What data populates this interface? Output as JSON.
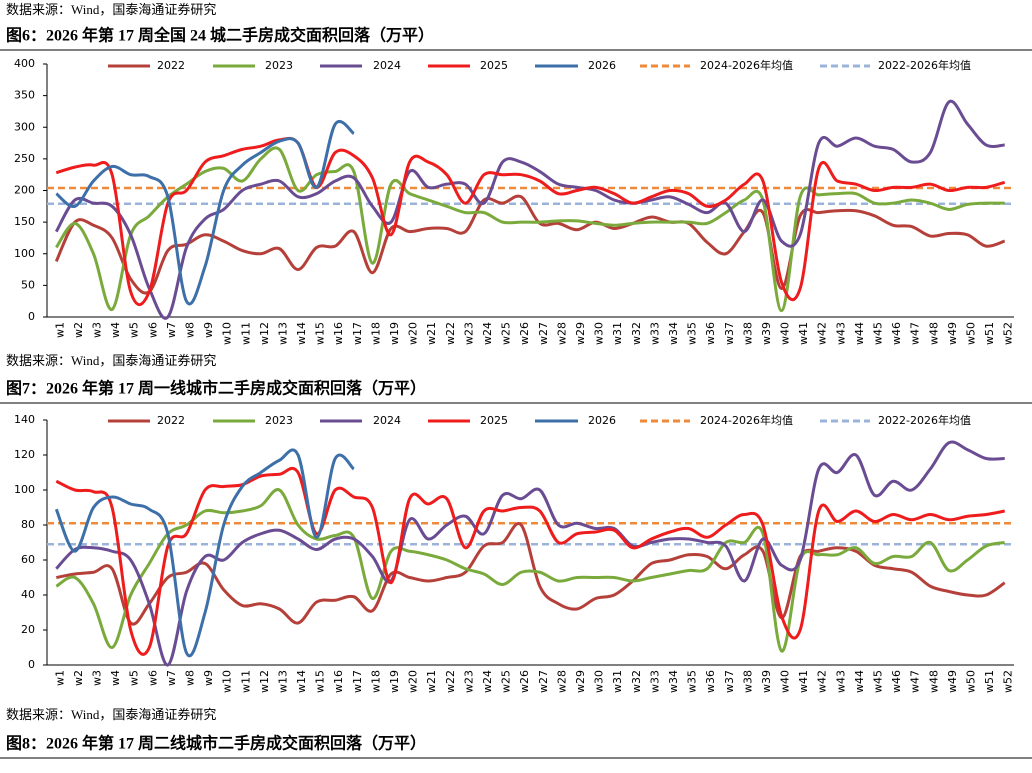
{
  "chart_data": [
    {
      "type": "line",
      "source": "数据来源：Wind，国泰海通证券研究",
      "title": "图6：2026 年第 17 周全国 24 城二手房成交面积回落（万平）",
      "categories": [
        "w1",
        "w2",
        "w3",
        "w4",
        "w5",
        "w6",
        "w7",
        "w8",
        "w9",
        "w10",
        "w11",
        "w12",
        "w13",
        "w14",
        "w15",
        "w16",
        "w17",
        "w18",
        "w19",
        "w20",
        "w21",
        "w22",
        "w23",
        "w24",
        "w25",
        "w26",
        "w27",
        "w28",
        "w29",
        "w30",
        "w31",
        "w32",
        "w33",
        "w34",
        "w35",
        "w36",
        "w37",
        "w38",
        "w39",
        "w40",
        "w41",
        "w42",
        "w43",
        "w44",
        "w45",
        "w46",
        "w47",
        "w48",
        "w49",
        "w50",
        "w51",
        "w52"
      ],
      "ylim": [
        0,
        400
      ],
      "yticks": [
        0,
        50,
        100,
        150,
        200,
        250,
        300,
        350,
        400
      ],
      "series": [
        {
          "name": "2022",
          "color": "#b5403a",
          "values": [
            88,
            150,
            145,
            125,
            60,
            40,
            105,
            115,
            130,
            120,
            105,
            100,
            108,
            75,
            110,
            112,
            135,
            70,
            140,
            135,
            140,
            140,
            135,
            185,
            180,
            190,
            148,
            148,
            138,
            150,
            140,
            148,
            158,
            150,
            148,
            118,
            100,
            135,
            165,
            45,
            160,
            165,
            168,
            168,
            160,
            145,
            143,
            128,
            132,
            130,
            112,
            120
          ]
        },
        {
          "name": "2023",
          "color": "#7aaa3c",
          "values": [
            110,
            148,
            100,
            12,
            130,
            160,
            190,
            210,
            230,
            235,
            215,
            250,
            265,
            200,
            225,
            230,
            230,
            85,
            210,
            195,
            185,
            175,
            165,
            165,
            150,
            150,
            150,
            152,
            152,
            148,
            145,
            148,
            150,
            150,
            150,
            148,
            165,
            185,
            185,
            10,
            190,
            193,
            195,
            195,
            180,
            180,
            185,
            180,
            170,
            178,
            180,
            180
          ]
        },
        {
          "name": "2024",
          "color": "#6a4c93",
          "values": [
            135,
            185,
            180,
            175,
            130,
            45,
            0,
            110,
            155,
            170,
            200,
            210,
            215,
            190,
            195,
            215,
            220,
            175,
            150,
            230,
            205,
            210,
            210,
            180,
            245,
            245,
            230,
            210,
            205,
            200,
            185,
            180,
            185,
            190,
            178,
            165,
            180,
            135,
            185,
            120,
            130,
            275,
            270,
            283,
            270,
            265,
            245,
            260,
            340,
            305,
            272,
            272
          ]
        },
        {
          "name": "2025",
          "color": "#ee1c1c",
          "values": [
            228,
            237,
            240,
            225,
            40,
            40,
            180,
            200,
            245,
            255,
            265,
            270,
            280,
            275,
            205,
            260,
            255,
            220,
            130,
            245,
            245,
            225,
            180,
            225,
            225,
            225,
            215,
            195,
            200,
            205,
            195,
            180,
            190,
            200,
            195,
            175,
            185,
            210,
            215,
            55,
            45,
            235,
            215,
            210,
            200,
            205,
            205,
            210,
            200,
            205,
            205,
            213
          ]
        },
        {
          "name": "2026",
          "color": "#3d6fa8",
          "values": [
            195,
            175,
            215,
            238,
            225,
            222,
            190,
            25,
            80,
            200,
            240,
            260,
            278,
            275,
            205,
            305,
            290,
            null,
            null,
            null,
            null,
            null,
            null,
            null,
            null,
            null,
            null,
            null,
            null,
            null,
            null,
            null,
            null,
            null,
            null,
            null,
            null,
            null,
            null,
            null,
            null,
            null,
            null,
            null,
            null,
            null,
            null,
            null,
            null,
            null,
            null,
            null
          ]
        }
      ],
      "reference_lines": [
        {
          "name": "2024-2026年均值",
          "color": "#ee8a3a",
          "value": 204
        },
        {
          "name": "2022-2026年均值",
          "color": "#9bb3d9",
          "value": 179
        }
      ]
    },
    {
      "type": "line",
      "source": "数据来源：Wind，国泰海通证券研究",
      "title": "图7：2026 年第 17 周一线城市二手房成交面积回落（万平）",
      "categories": [
        "w1",
        "w2",
        "w3",
        "w4",
        "w5",
        "w6",
        "w7",
        "w8",
        "w9",
        "w10",
        "w11",
        "w12",
        "w13",
        "w14",
        "w15",
        "w16",
        "w17",
        "w18",
        "w19",
        "w20",
        "w21",
        "w22",
        "w23",
        "w24",
        "w25",
        "w26",
        "w27",
        "w28",
        "w29",
        "w30",
        "w31",
        "w32",
        "w33",
        "w34",
        "w35",
        "w36",
        "w37",
        "w38",
        "w39",
        "w40",
        "w41",
        "w42",
        "w43",
        "w44",
        "w45",
        "w46",
        "w47",
        "w48",
        "w49",
        "w50",
        "w51",
        "w52"
      ],
      "ylim": [
        0,
        140
      ],
      "yticks": [
        0,
        20,
        40,
        60,
        80,
        100,
        120,
        140
      ],
      "series": [
        {
          "name": "2022",
          "color": "#b5403a",
          "values": [
            50,
            52,
            53,
            55,
            24,
            35,
            50,
            53,
            58,
            43,
            34,
            35,
            32,
            24,
            36,
            37,
            39,
            31,
            52,
            50,
            48,
            50,
            53,
            68,
            70,
            80,
            45,
            35,
            32,
            38,
            40,
            48,
            58,
            60,
            63,
            62,
            55,
            63,
            65,
            27,
            62,
            65,
            67,
            65,
            57,
            55,
            53,
            45,
            42,
            40,
            40,
            47
          ]
        },
        {
          "name": "2023",
          "color": "#7aaa3c",
          "values": [
            45,
            50,
            35,
            10,
            40,
            58,
            75,
            80,
            88,
            87,
            88,
            91,
            100,
            80,
            72,
            74,
            73,
            38,
            65,
            65,
            63,
            60,
            55,
            52,
            46,
            53,
            53,
            48,
            50,
            50,
            50,
            48,
            50,
            52,
            54,
            55,
            70,
            70,
            75,
            8,
            60,
            63,
            63,
            67,
            58,
            62,
            62,
            70,
            54,
            60,
            68,
            70
          ]
        },
        {
          "name": "2024",
          "color": "#6a4c93",
          "values": [
            55,
            66,
            67,
            65,
            60,
            35,
            0,
            42,
            62,
            60,
            70,
            75,
            77,
            72,
            66,
            72,
            72,
            62,
            48,
            83,
            72,
            80,
            85,
            75,
            97,
            95,
            100,
            80,
            81,
            78,
            78,
            68,
            70,
            72,
            72,
            70,
            68,
            48,
            72,
            57,
            60,
            112,
            110,
            120,
            97,
            105,
            100,
            112,
            127,
            123,
            118,
            118
          ]
        },
        {
          "name": "2025",
          "color": "#ee1c1c",
          "values": [
            105,
            100,
            99,
            90,
            20,
            10,
            68,
            75,
            100,
            102,
            103,
            108,
            109,
            110,
            75,
            100,
            96,
            90,
            47,
            95,
            92,
            95,
            67,
            88,
            88,
            90,
            88,
            70,
            75,
            76,
            77,
            67,
            72,
            76,
            78,
            73,
            80,
            86,
            80,
            28,
            20,
            88,
            82,
            88,
            82,
            86,
            83,
            86,
            83,
            85,
            86,
            88
          ]
        },
        {
          "name": "2026",
          "color": "#3d6fa8",
          "values": [
            89,
            65,
            90,
            96,
            92,
            89,
            75,
            7,
            30,
            80,
            102,
            110,
            117,
            120,
            73,
            118,
            112,
            null,
            null,
            null,
            null,
            null,
            null,
            null,
            null,
            null,
            null,
            null,
            null,
            null,
            null,
            null,
            null,
            null,
            null,
            null,
            null,
            null,
            null,
            null,
            null,
            null,
            null,
            null,
            null,
            null,
            null,
            null,
            null,
            null,
            null,
            null
          ]
        }
      ],
      "reference_lines": [
        {
          "name": "2024-2026年均值",
          "color": "#ee8a3a",
          "value": 81
        },
        {
          "name": "2022-2026年均值",
          "color": "#9bb3d9",
          "value": 69
        }
      ]
    }
  ],
  "footer": {
    "source": "数据来源：Wind，国泰海通证券研究",
    "title": "图8：2026 年第 17 周二线城市二手房成交面积回落（万平）"
  }
}
